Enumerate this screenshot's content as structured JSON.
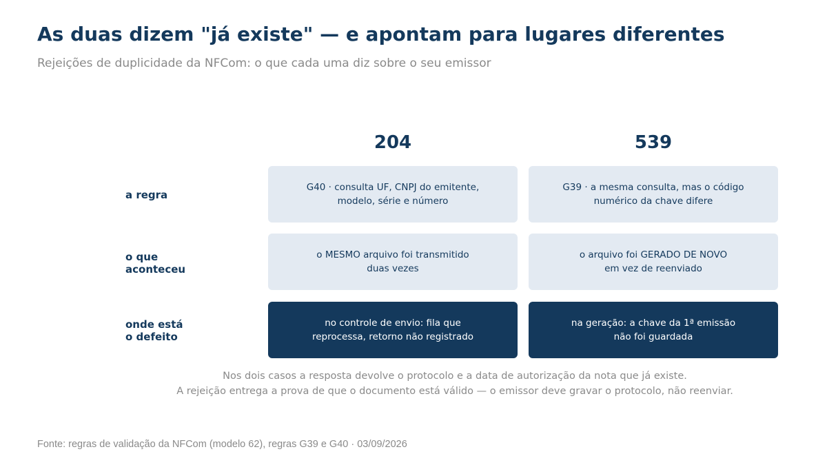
{
  "title": "As duas dizem \"já existe\" — e apontam para lugares diferentes",
  "subtitle": "Rejeições de duplicidade da NFCom: o que cada uma diz sobre o seu emissor",
  "columns": [
    "204",
    "539"
  ],
  "rows": [
    {
      "label": "a regra",
      "cells": [
        "G40 · consulta UF, CNPJ do emitente,\nmodelo, série e número",
        "G39 · a mesma consulta, mas o código\nnumérico da chave difere"
      ]
    },
    {
      "label": "o que\naconteceu",
      "cells": [
        "o MESMO arquivo foi transmitido\nduas vezes",
        "o arquivo foi GERADO DE NOVO\nem vez de reenviado"
      ]
    },
    {
      "label": "onde está\no defeito",
      "cells": [
        "no controle de envio: fila que\nreprocessa, retorno não registrado",
        "na geração: a chave da 1ª emissão\nnão foi guardada"
      ]
    }
  ],
  "notes": [
    "Nos dois casos a resposta devolve o protocolo e a data de autorização da nota que já existe.",
    "A rejeição entrega a prova de que o documento está válido — o emissor deve gravar o protocolo, não reenviar."
  ],
  "source": "Fonte: regras de validação da NFCom (modelo 62), regras G39 e G40 · 03/09/2026",
  "colors": {
    "navy": "#14395c",
    "light_cell": "#e3eaf2",
    "muted_text": "#8a8a8a"
  }
}
